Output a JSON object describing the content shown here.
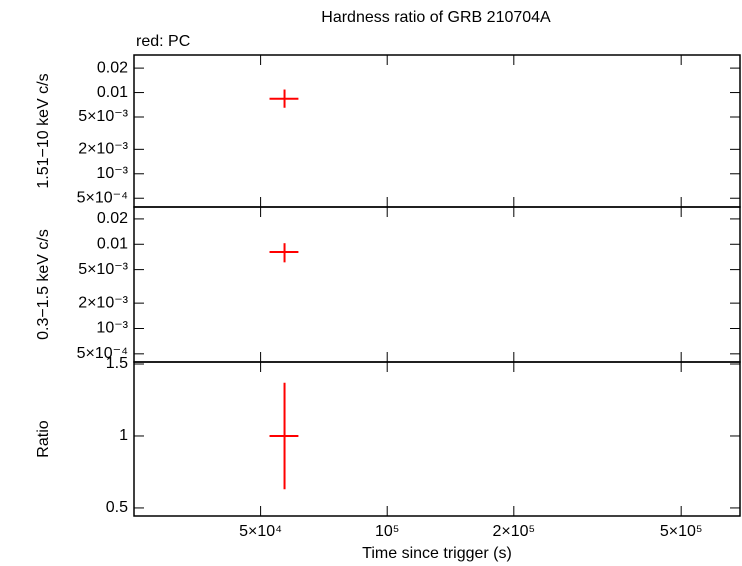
{
  "chart_data": [
    {
      "type": "errorbar",
      "title": "Hardness ratio of GRB 210704A",
      "subtitle": "red: PC",
      "ylabel": "1.51−10 keV c/s",
      "log_x": true,
      "log_y": true,
      "xlim": [
        25000,
        690000
      ],
      "ylim": [
        0.00039,
        0.029
      ],
      "yticks": [
        0.02,
        0.01,
        {
          "value": 0.005,
          "label": "5×10⁻³"
        },
        {
          "value": 0.002,
          "label": "2×10⁻³"
        },
        {
          "value": 0.001,
          "label": "10⁻³"
        },
        {
          "value": 0.0005,
          "label": "5×10⁻⁴"
        }
      ],
      "color": "#ff0000",
      "x": [
        57000
      ],
      "xerr_minus": [
        4500
      ],
      "xerr_plus": [
        4500
      ],
      "values": [
        0.0084
      ],
      "yerr_minus": [
        0.0019
      ],
      "yerr_plus": [
        0.0025
      ]
    },
    {
      "type": "errorbar",
      "ylabel": "0.3−1.5 keV c/s",
      "log_x": true,
      "log_y": true,
      "xlim": [
        25000,
        690000
      ],
      "ylim": [
        0.0004,
        0.0277
      ],
      "yticks": [
        0.02,
        0.01,
        {
          "value": 0.005,
          "label": "5×10⁻³"
        },
        {
          "value": 0.002,
          "label": "2×10⁻³"
        },
        {
          "value": 0.001,
          "label": "10⁻³"
        },
        {
          "value": 0.0005,
          "label": "5×10⁻⁴"
        }
      ],
      "color": "#ff0000",
      "x": [
        57000
      ],
      "xerr_minus": [
        4500
      ],
      "xerr_plus": [
        4500
      ],
      "values": [
        0.0081
      ],
      "yerr_minus": [
        0.002
      ],
      "yerr_plus": [
        0.0022
      ]
    },
    {
      "type": "errorbar",
      "ylabel": "Ratio",
      "xlabel": "Time since trigger (s)",
      "log_x": true,
      "log_y": false,
      "xlim": [
        25000,
        690000
      ],
      "ylim": [
        0.444,
        1.514
      ],
      "xticks": [
        {
          "value": 50000,
          "label": "5×10⁴"
        },
        {
          "value": 100000,
          "label": "10⁵"
        },
        {
          "value": 200000,
          "label": "2×10⁵"
        },
        {
          "value": 500000,
          "label": "5×10⁵"
        }
      ],
      "yticks": [
        1.5,
        1,
        0.5
      ],
      "color": "#ff0000",
      "x": [
        57000
      ],
      "xerr_minus": [
        4500
      ],
      "xerr_plus": [
        4500
      ],
      "values": [
        1
      ],
      "yerr_minus": [
        0.37
      ],
      "yerr_plus": [
        0.37
      ]
    }
  ]
}
